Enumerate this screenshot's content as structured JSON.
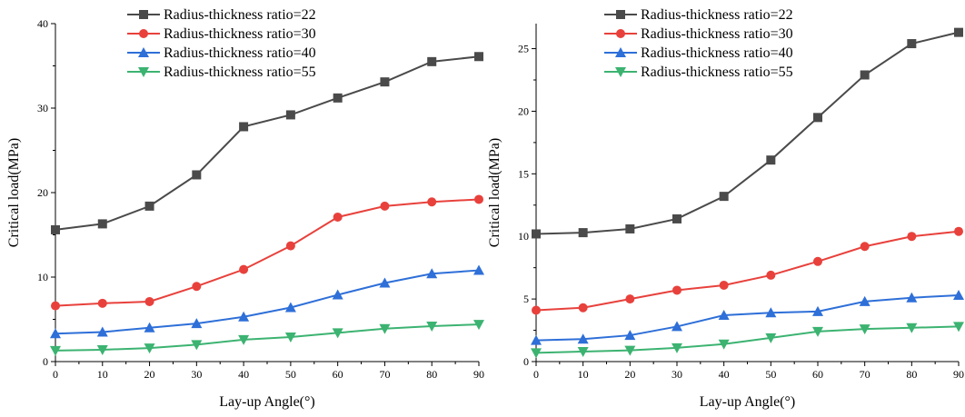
{
  "chart_data": [
    {
      "type": "line",
      "xlabel": "Lay-up Angle(°)",
      "ylabel": "Critical load(MPa)",
      "xlim": [
        0,
        90
      ],
      "ylim": [
        0,
        40
      ],
      "x_ticks": [
        0,
        10,
        20,
        30,
        40,
        50,
        60,
        70,
        80,
        90
      ],
      "y_ticks": [
        0,
        10,
        20,
        30,
        40
      ],
      "grid": false,
      "legend_position": "top-center",
      "x": [
        0,
        10,
        20,
        30,
        40,
        50,
        60,
        70,
        80,
        90
      ],
      "series": [
        {
          "name": "Radius-thickness ratio=22",
          "color": "#4a4a4a",
          "marker": "square",
          "values": [
            15.6,
            16.3,
            18.4,
            22.1,
            27.8,
            29.2,
            31.2,
            33.1,
            35.5,
            36.1
          ]
        },
        {
          "name": "Radius-thickness ratio=30",
          "color": "#e8413c",
          "marker": "circle",
          "values": [
            6.6,
            6.9,
            7.1,
            8.9,
            10.9,
            13.7,
            17.1,
            18.4,
            18.9,
            19.2
          ]
        },
        {
          "name": "Radius-thickness ratio=40",
          "color": "#2e6fd8",
          "marker": "triangle-up",
          "values": [
            3.3,
            3.5,
            4.0,
            4.5,
            5.3,
            6.4,
            7.9,
            9.3,
            10.4,
            10.8
          ]
        },
        {
          "name": "Radius-thickness ratio=55",
          "color": "#3cb371",
          "marker": "triangle-down",
          "values": [
            1.3,
            1.4,
            1.6,
            2.0,
            2.6,
            2.9,
            3.4,
            3.9,
            4.2,
            4.4
          ]
        }
      ]
    },
    {
      "type": "line",
      "xlabel": "Lay-up Angle(°)",
      "ylabel": "Critical load(MPa)",
      "xlim": [
        0,
        90
      ],
      "ylim": [
        0,
        27
      ],
      "x_ticks": [
        0,
        10,
        20,
        30,
        40,
        50,
        60,
        70,
        80,
        90
      ],
      "y_ticks": [
        0,
        5,
        10,
        15,
        20,
        25
      ],
      "grid": false,
      "legend_position": "top-center",
      "x": [
        0,
        10,
        20,
        30,
        40,
        50,
        60,
        70,
        80,
        90
      ],
      "series": [
        {
          "name": "Radius-thickness ratio=22",
          "color": "#4a4a4a",
          "marker": "square",
          "values": [
            10.2,
            10.3,
            10.6,
            11.4,
            13.2,
            16.1,
            19.5,
            22.9,
            25.4,
            26.3
          ]
        },
        {
          "name": "Radius-thickness ratio=30",
          "color": "#e8413c",
          "marker": "circle",
          "values": [
            4.1,
            4.3,
            5.0,
            5.7,
            6.1,
            6.9,
            8.0,
            9.2,
            10.0,
            10.4
          ]
        },
        {
          "name": "Radius-thickness ratio=40",
          "color": "#2e6fd8",
          "marker": "triangle-up",
          "values": [
            1.7,
            1.8,
            2.1,
            2.8,
            3.7,
            3.9,
            4.0,
            4.8,
            5.1,
            5.3
          ]
        },
        {
          "name": "Radius-thickness ratio=55",
          "color": "#3cb371",
          "marker": "triangle-down",
          "values": [
            0.7,
            0.8,
            0.9,
            1.1,
            1.4,
            1.9,
            2.4,
            2.6,
            2.7,
            2.8
          ]
        }
      ]
    }
  ]
}
